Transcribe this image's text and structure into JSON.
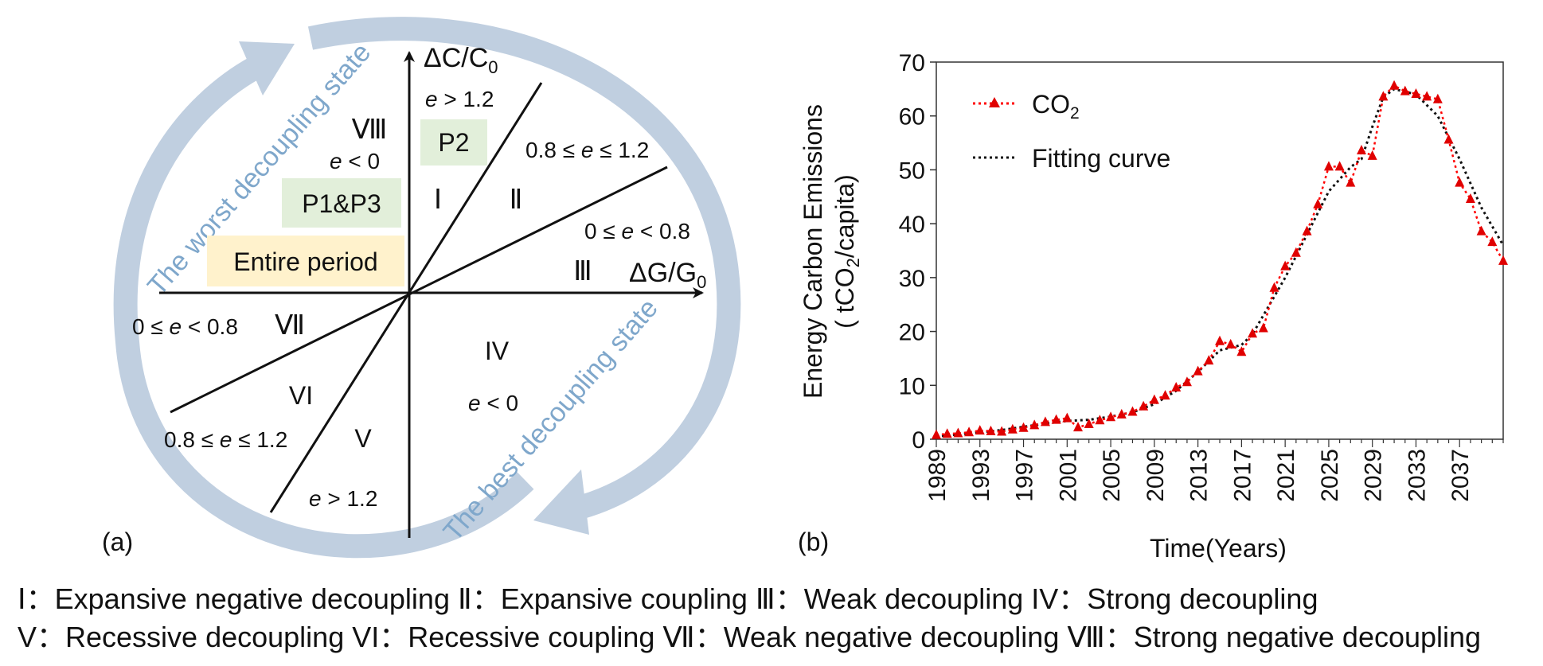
{
  "panel_a": {
    "label": "(a)",
    "y_axis_label": "ΔC/C",
    "y_axis_sub": "0",
    "x_axis_label": "ΔG/G",
    "x_axis_sub": "0",
    "arrow_worst": "The worst decoupling state",
    "arrow_best": "The best decoupling state",
    "boxes": [
      {
        "text": "P2",
        "color": "#e2efda"
      },
      {
        "text": "P1&P3",
        "color": "#e2efda"
      },
      {
        "text": "Entire period",
        "color": "#fff2cc"
      }
    ],
    "regions": {
      "I": "Ⅰ",
      "II": "Ⅱ",
      "III": "Ⅲ",
      "IV": "IV",
      "V": "V",
      "VI": "VI",
      "VII": "Ⅶ",
      "VIII": "Ⅷ"
    },
    "conditions": {
      "q1_top": [
        "e",
        " > 1.2"
      ],
      "q1_mid": [
        "0.8 ≤ ",
        "e",
        " ≤ 1.2"
      ],
      "q1_low": [
        "0 ≤ ",
        "e",
        " < 0.8"
      ],
      "q2": [
        "e",
        " < 0"
      ],
      "q4": [
        "e",
        " < 0"
      ],
      "q3_high": [
        "0 ≤ ",
        "e",
        " < 0.8"
      ],
      "q3_mid": [
        "0.8 ≤ ",
        "e",
        " ≤ 1.2"
      ],
      "q3_low": [
        "e",
        " > 1.2"
      ]
    }
  },
  "panel_b": {
    "label": "(b)"
  },
  "legend_lines": [
    "Ⅰ：Expansive negative decoupling Ⅱ：Expansive coupling Ⅲ：Weak decoupling IV：Strong decoupling",
    "V：Recessive decoupling VI：Recessive coupling Ⅶ：Weak negative decoupling Ⅷ：Strong negative decoupling"
  ],
  "chart_data": {
    "type": "line",
    "ylabel_line1": "Energy Carbon Emissions",
    "ylabel_line2_pre": "( tCO",
    "ylabel_line2_sub": "2",
    "ylabel_line2_post": "/capita)",
    "xlabel": "Time(Years)",
    "ylim": [
      0,
      70
    ],
    "yticks": [
      "0",
      "10",
      "20",
      "30",
      "40",
      "50",
      "60",
      "70"
    ],
    "xlim": [
      1989,
      2041
    ],
    "xticks": [
      "1989",
      "1993",
      "1997",
      "2001",
      "2005",
      "2009",
      "2013",
      "2017",
      "2021",
      "2025",
      "2029",
      "2033",
      "2037"
    ],
    "grid": false,
    "legend_position": "top-left",
    "series": [
      {
        "name": "CO",
        "name_sub": "2",
        "color": "#ff0000",
        "style": "dotted-triangle",
        "x": [
          1989,
          1990,
          1991,
          1992,
          1993,
          1994,
          1995,
          1996,
          1997,
          1998,
          1999,
          2000,
          2001,
          2002,
          2003,
          2004,
          2005,
          2006,
          2007,
          2008,
          2009,
          2010,
          2011,
          2012,
          2013,
          2014,
          2015,
          2016,
          2017,
          2018,
          2019,
          2020,
          2021,
          2022,
          2023,
          2024,
          2025,
          2026,
          2027,
          2028,
          2029,
          2030,
          2031,
          2032,
          2033,
          2034,
          2035,
          2036,
          2037,
          2038,
          2039,
          2040,
          2041
        ],
        "y": [
          0.8,
          1.0,
          1.1,
          1.3,
          1.6,
          1.5,
          1.4,
          1.8,
          2.1,
          2.6,
          3.2,
          3.6,
          3.9,
          2.2,
          2.8,
          3.5,
          4.1,
          4.6,
          5.1,
          6.1,
          7.3,
          8.1,
          9.6,
          10.6,
          12.6,
          14.6,
          18.2,
          17.6,
          16.2,
          19.6,
          20.6,
          28.1,
          32.1,
          34.6,
          38.6,
          43.6,
          50.6,
          50.6,
          47.6,
          53.6,
          52.6,
          63.6,
          65.6,
          64.6,
          64.1,
          63.6,
          63.1,
          55.6,
          47.6,
          44.6,
          38.6,
          36.6,
          33.1
        ]
      },
      {
        "name": "Fitting curve",
        "color": "#111111",
        "style": "dotted",
        "x": [
          1989,
          1991,
          1993,
          1995,
          1997,
          1999,
          2001,
          2003,
          2005,
          2007,
          2009,
          2011,
          2013,
          2015,
          2017,
          2018,
          2019,
          2021,
          2023,
          2025,
          2027,
          2028,
          2029,
          2030,
          2031,
          2033,
          2035,
          2037,
          2039,
          2041
        ],
        "y": [
          0.5,
          0.9,
          1.3,
          1.7,
          2.3,
          2.9,
          3.4,
          3.6,
          4.2,
          5.0,
          6.5,
          9.0,
          12.5,
          16.5,
          17.5,
          19.5,
          23.0,
          30.0,
          38.0,
          46.0,
          50.5,
          52.0,
          58.0,
          63.5,
          65.0,
          64.0,
          60.0,
          52.0,
          43.0,
          36.0
        ]
      }
    ]
  }
}
